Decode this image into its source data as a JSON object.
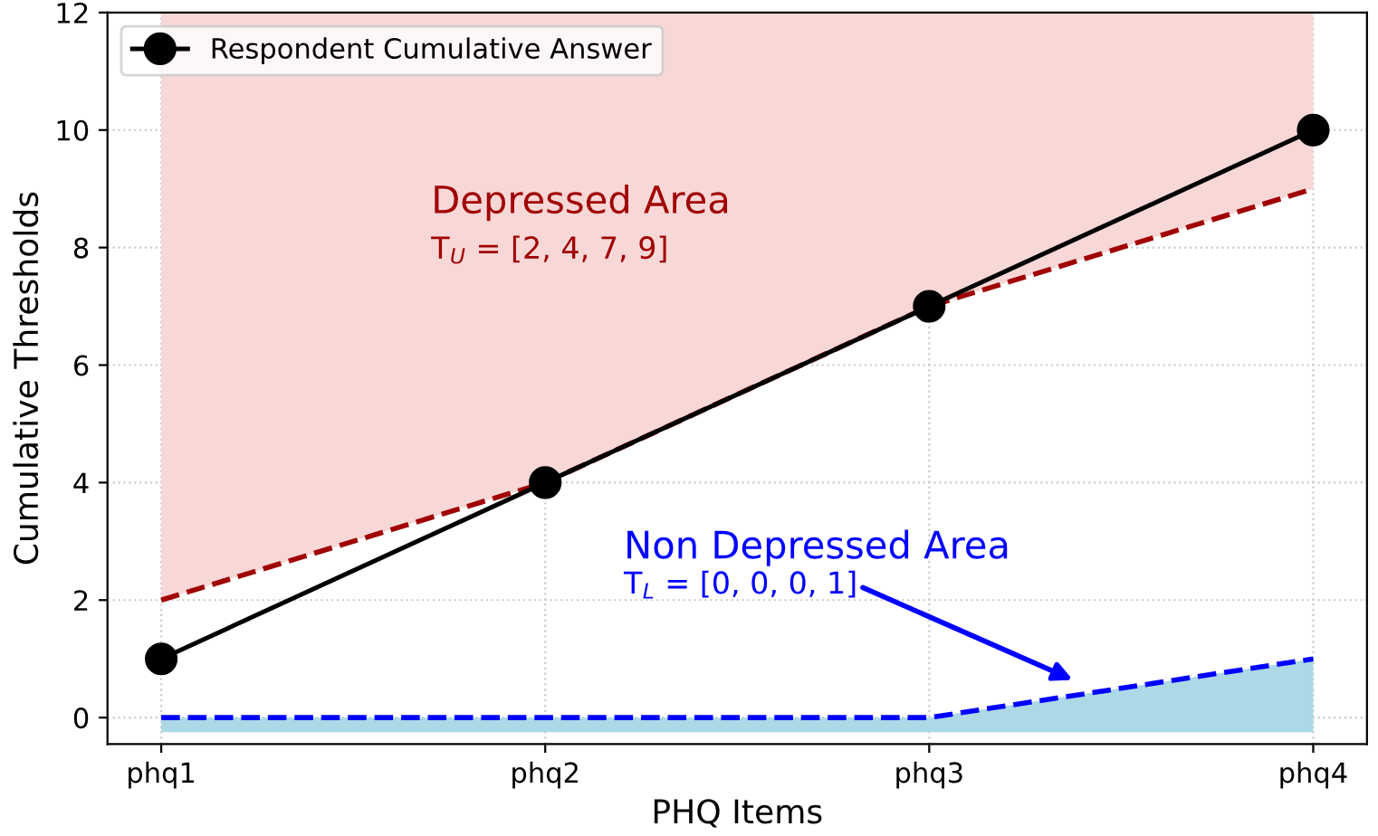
{
  "chart_data": {
    "type": "line",
    "xlabel": "PHQ Items",
    "ylabel": "Cumulative Thresholds",
    "categories": [
      "phq1",
      "phq2",
      "phq3",
      "phq4"
    ],
    "series": [
      {
        "name": "Respondent Cumulative Answer",
        "color": "#000000",
        "values": [
          1,
          4,
          7,
          10
        ],
        "marker": "circle",
        "line_style": "solid"
      },
      {
        "color": "#a00000",
        "values": [
          2,
          4,
          7,
          9
        ],
        "line_style": "dashed",
        "lower": [
          2,
          4,
          7,
          9
        ],
        "upper": [
          12,
          12,
          12,
          12
        ]
      },
      {
        "color": "#0000ff",
        "values": [
          0,
          0,
          0,
          1
        ],
        "line_style": "dashed",
        "lower": [
          -0.25,
          -0.25,
          -0.25,
          -0.25
        ],
        "upper": [
          0,
          0,
          0,
          1
        ]
      }
    ],
    "annotations": [
      "Depressed Area",
      "T$_{U}$ = [2, 4, 7, 9]",
      "Non Depressed Area",
      "T$_{L}$ = [0, 0, 0, 1]"
    ],
    "ylim": [
      -0.45,
      12
    ],
    "yticks": [
      0,
      2,
      4,
      6,
      8,
      10,
      12
    ],
    "grid": true,
    "legend": "top left"
  }
}
